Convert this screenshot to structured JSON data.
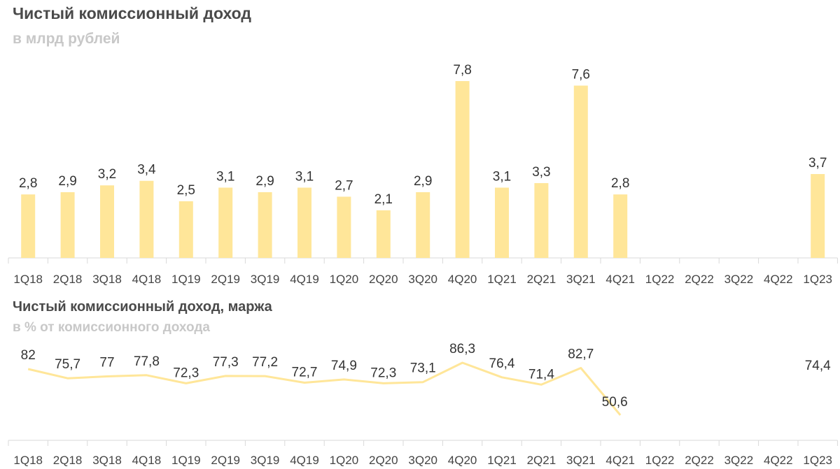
{
  "chart_data": [
    {
      "type": "bar",
      "title": "Чистый комиссионный доход",
      "subtitle": "в млрд рублей",
      "categories": [
        "1Q18",
        "2Q18",
        "3Q18",
        "4Q18",
        "1Q19",
        "2Q19",
        "3Q19",
        "4Q19",
        "1Q20",
        "2Q20",
        "3Q20",
        "4Q20",
        "1Q21",
        "2Q21",
        "3Q21",
        "4Q21",
        "1Q22",
        "2Q22",
        "3Q22",
        "4Q22",
        "1Q23"
      ],
      "values": [
        2.8,
        2.9,
        3.2,
        3.4,
        2.5,
        3.1,
        2.9,
        3.1,
        2.7,
        2.1,
        2.9,
        7.8,
        3.1,
        3.3,
        7.6,
        2.8,
        null,
        null,
        null,
        null,
        3.7
      ],
      "value_labels": [
        "2,8",
        "2,9",
        "3,2",
        "3,4",
        "2,5",
        "3,1",
        "2,9",
        "3,1",
        "2,7",
        "2,1",
        "2,9",
        "7,8",
        "3,1",
        "3,3",
        "7,6",
        "2,8",
        "",
        "",
        "",
        "",
        "3,7"
      ],
      "bar_color": "#ffe699",
      "ylim": [
        0,
        8.4
      ]
    },
    {
      "type": "line",
      "title": "Чистый комиссионный доход, маржа",
      "subtitle": "в % от комиссионного дохода",
      "categories": [
        "1Q18",
        "2Q18",
        "3Q18",
        "4Q18",
        "1Q19",
        "2Q19",
        "3Q19",
        "4Q19",
        "1Q20",
        "2Q20",
        "3Q20",
        "4Q20",
        "1Q21",
        "2Q21",
        "3Q21",
        "4Q21",
        "1Q22",
        "2Q22",
        "3Q22",
        "4Q22",
        "1Q23"
      ],
      "values": [
        82,
        75.7,
        77,
        77.8,
        72.3,
        77.3,
        77.2,
        72.7,
        74.9,
        72.3,
        73.1,
        86.3,
        76.4,
        71.4,
        82.7,
        50.6,
        null,
        null,
        null,
        null,
        74.4
      ],
      "value_labels": [
        "82",
        "75,7",
        "77",
        "77,8",
        "72,3",
        "77,3",
        "77,2",
        "72,7",
        "74,9",
        "72,3",
        "73,1",
        "86,3",
        "76,4",
        "71,4",
        "82,7",
        "50,6",
        "",
        "",
        "",
        "",
        "74,4"
      ],
      "line_color": "#ffe699"
    }
  ]
}
